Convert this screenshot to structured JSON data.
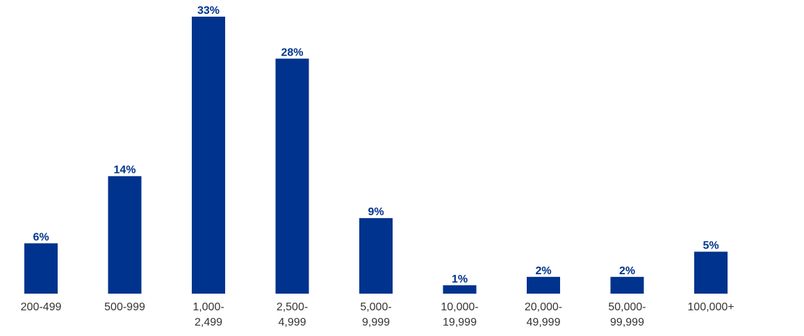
{
  "chart_data": {
    "type": "bar",
    "categories": [
      [
        "200-499"
      ],
      [
        "500-999"
      ],
      [
        "1,000-",
        "2,499"
      ],
      [
        "2,500-",
        "4,999"
      ],
      [
        "5,000-",
        "9,999"
      ],
      [
        "10,000-",
        "19,999"
      ],
      [
        "20,000-",
        "49,999"
      ],
      [
        "50,000-",
        "99,999"
      ],
      [
        "100,000+"
      ]
    ],
    "values": [
      6,
      14,
      33,
      28,
      9,
      1,
      2,
      2,
      5
    ],
    "value_labels": [
      "6%",
      "14%",
      "33%",
      "28%",
      "9%",
      "1%",
      "2%",
      "2%",
      "5%"
    ],
    "title": "",
    "xlabel": "",
    "ylabel": "",
    "ylim": [
      0,
      33
    ],
    "grid": false,
    "colors": {
      "bar": "#00338D",
      "label": "#00338D",
      "tick": "#333333"
    }
  }
}
